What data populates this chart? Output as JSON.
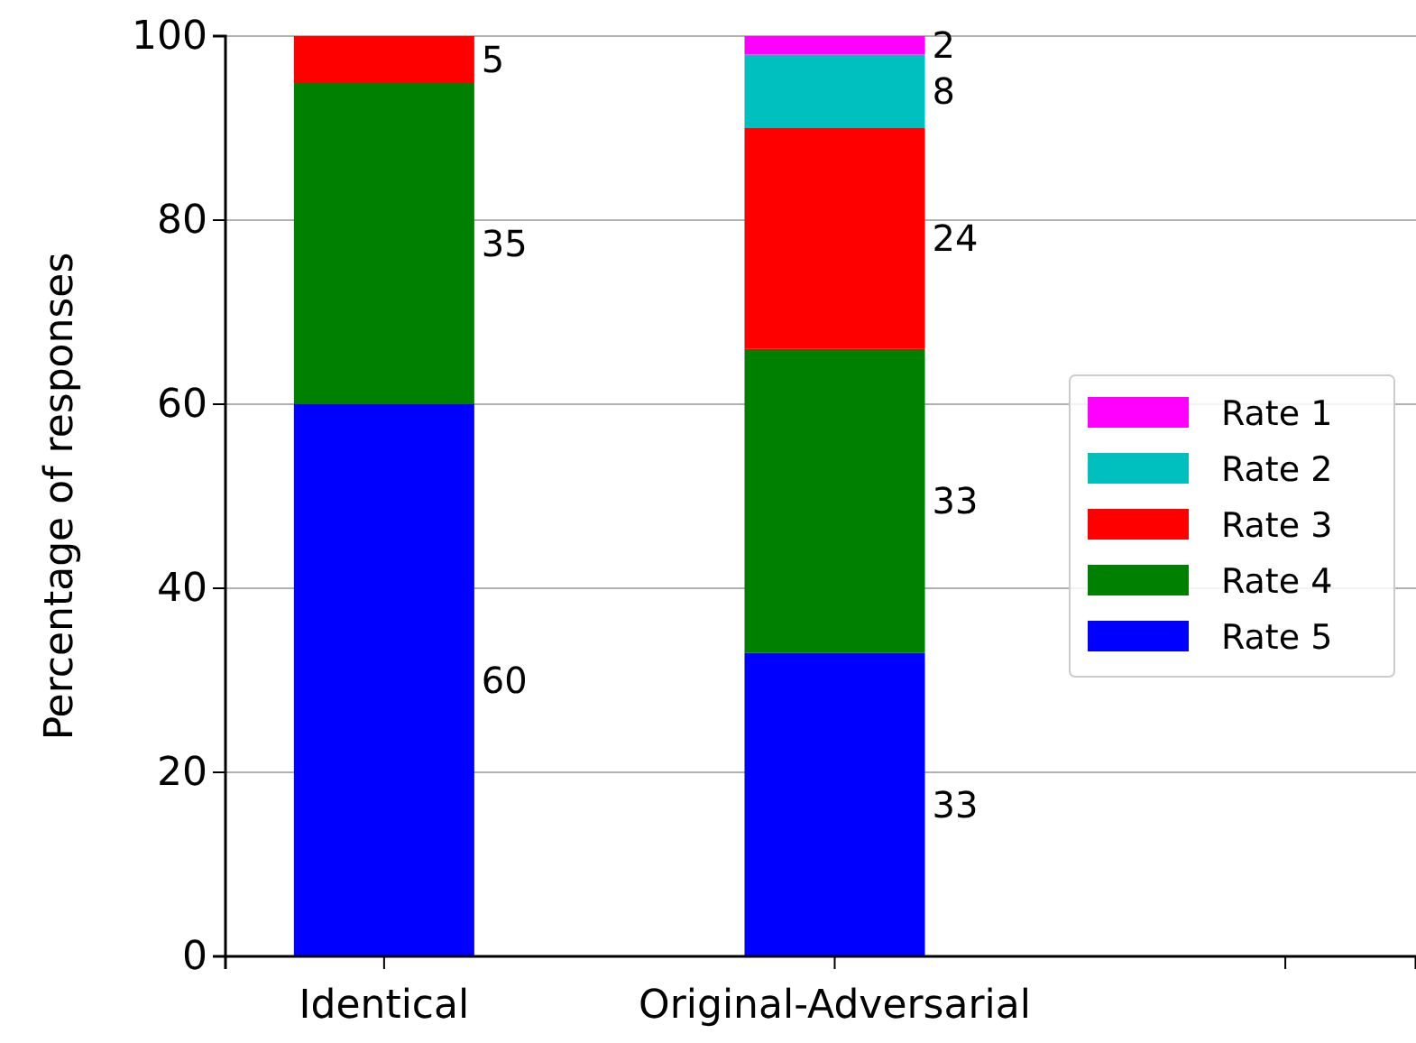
{
  "chart_data": {
    "type": "bar",
    "stacked": true,
    "ylabel": "Percentage of responses",
    "categories": [
      "Identical",
      "Original-Adversarial",
      null
    ],
    "series": [
      {
        "name": "Rate 5",
        "color": "#0000ff",
        "values": [
          60,
          33,
          null
        ],
        "value_labels": [
          "60",
          "33",
          null
        ]
      },
      {
        "name": "Rate 4",
        "color": "#008000",
        "values": [
          35,
          33,
          null
        ],
        "value_labels": [
          "35",
          "33",
          null
        ]
      },
      {
        "name": "Rate 3",
        "color": "#ff0000",
        "values": [
          5,
          24,
          null
        ],
        "value_labels": [
          "5",
          "24",
          null
        ]
      },
      {
        "name": "Rate 2",
        "color": "#00bfbf",
        "values": [
          0,
          8,
          null
        ],
        "value_labels": [
          null,
          "8",
          null
        ]
      },
      {
        "name": "Rate 1",
        "color": "#ff00ff",
        "values": [
          0,
          2,
          null
        ],
        "value_labels": [
          null,
          "2",
          null
        ]
      }
    ],
    "ylim": [
      0,
      100
    ],
    "yticks": [
      0,
      20,
      40,
      60,
      80,
      100
    ],
    "grid": "y",
    "legend": "right"
  }
}
